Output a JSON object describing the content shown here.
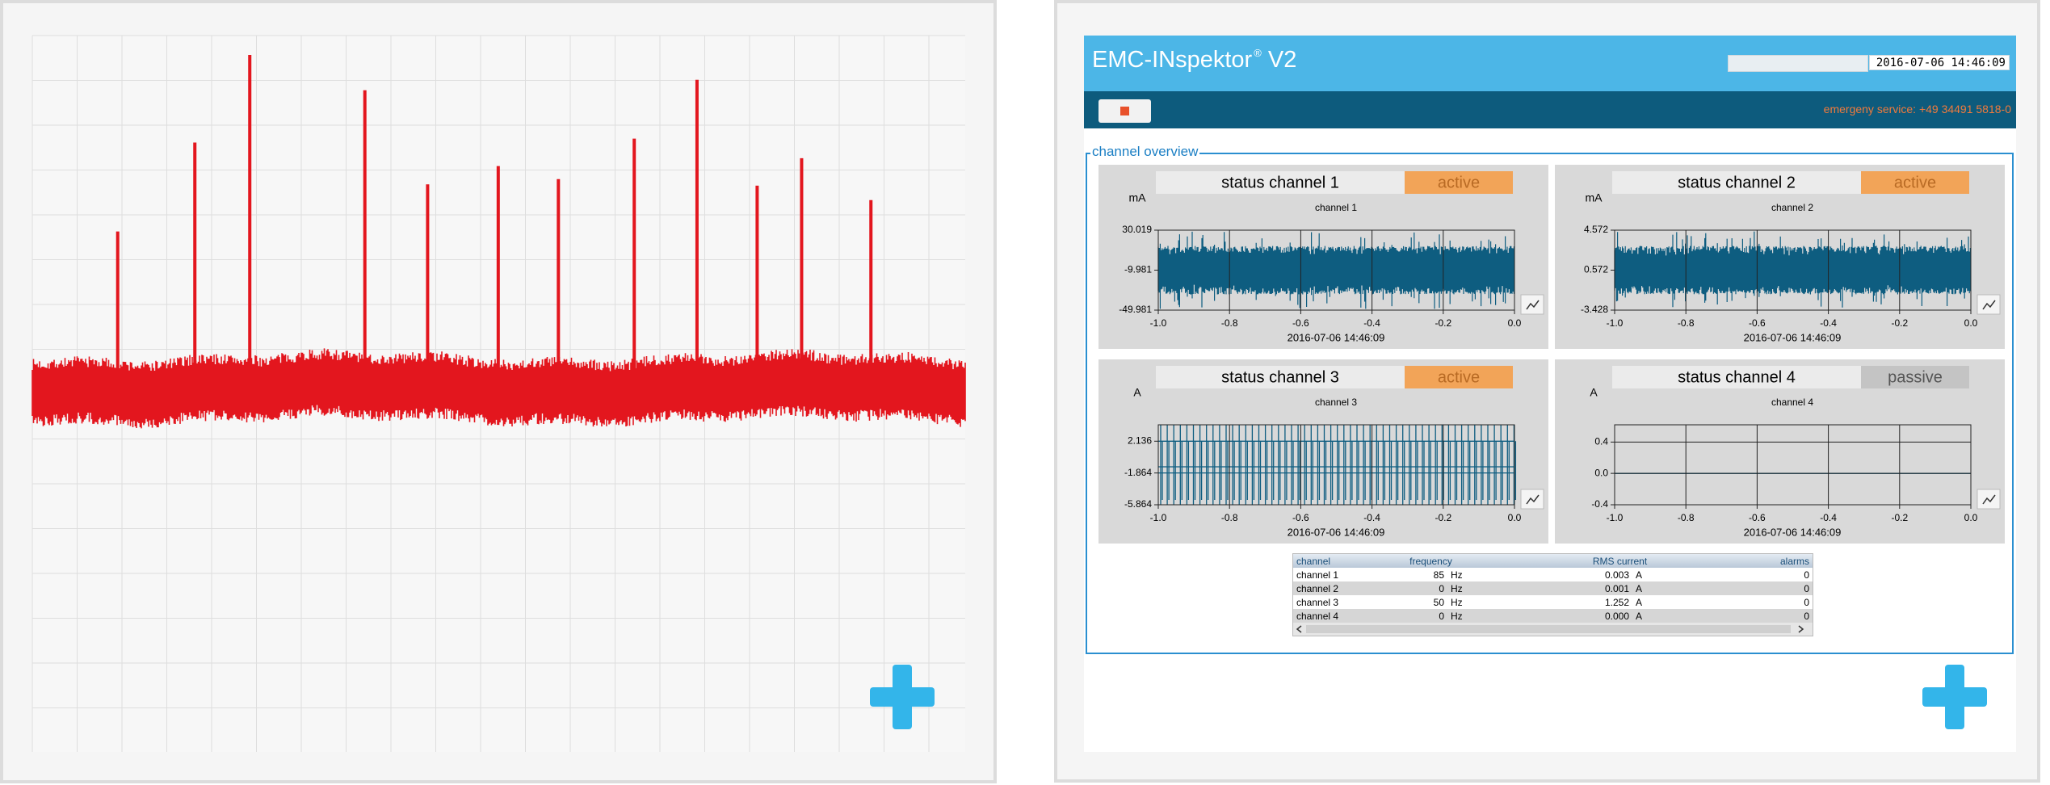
{
  "header": {
    "title": "EMC-INspektor",
    "trademark": "®",
    "version": "V2",
    "datetime": "2016-07-06 14:46:09",
    "emergency": "emergeny service: +49 34491 5818-0"
  },
  "overview": {
    "legend": "channel overview",
    "channels": [
      {
        "status": "status channel 1",
        "state": "active",
        "unit": "mA",
        "title": "channel 1",
        "ylim": [
          -49.981,
          30.019
        ],
        "yticks": [
          -49.981,
          -9.981,
          30.019
        ],
        "xlim": [
          -1,
          0
        ],
        "xticks": [
          {
            "value": -1,
            "label": "-1.0"
          },
          -0.8,
          -0.6,
          -0.4,
          -0.2,
          {
            "value": 0,
            "label": "0.0"
          }
        ],
        "timestamp": "2016-07-06 14:46:09"
      },
      {
        "status": "status channel 2",
        "state": "active",
        "unit": "mA",
        "title": "channel 2",
        "ylim": [
          -3.428,
          4.572
        ],
        "yticks": [
          -3.428,
          0.572,
          4.572
        ],
        "xlim": [
          -1,
          0
        ],
        "xticks": [
          {
            "value": -1,
            "label": "-1.0"
          },
          -0.8,
          -0.6,
          -0.4,
          -0.2,
          {
            "value": 0,
            "label": "0.0"
          }
        ],
        "timestamp": "2016-07-06 14:46:09"
      },
      {
        "status": "status channel 3",
        "state": "active",
        "unit": "A",
        "title": "channel 3",
        "ylim": [
          -5.864,
          4.2
        ],
        "yticks": [
          -5.864,
          -1.864,
          2.136
        ],
        "xlim": [
          -1,
          0
        ],
        "xticks": [
          {
            "value": -1,
            "label": "-1.0"
          },
          -0.8,
          -0.6,
          -0.4,
          -0.2,
          {
            "value": 0,
            "label": "0.0"
          }
        ],
        "timestamp": "2016-07-06 14:46:09"
      },
      {
        "status": "status channel 4",
        "state": "passive",
        "unit": "A",
        "title": "channel 4",
        "ylim": [
          -0.4,
          0.62
        ],
        "yticks": [
          -0.4,
          {
            "value": 0,
            "label": "0.0"
          },
          0.4
        ],
        "xlim": [
          -1,
          0
        ],
        "xticks": [
          {
            "value": -1,
            "label": "-1.0"
          },
          -0.8,
          -0.6,
          -0.4,
          -0.2,
          {
            "value": 0,
            "label": "0.0"
          }
        ],
        "timestamp": "2016-07-06 14:46:09"
      }
    ]
  },
  "table": {
    "columns": [
      "channel",
      "frequency",
      "RMS current",
      "alarms"
    ],
    "rows": [
      [
        "channel 1",
        "85",
        "Hz",
        "0.003",
        "A",
        "0"
      ],
      [
        "channel 2",
        "0",
        "Hz",
        "0.001",
        "A",
        "0"
      ],
      [
        "channel 3",
        "50",
        "Hz",
        "1.252",
        "A",
        "0"
      ],
      [
        "channel 4",
        "0",
        "Hz",
        "0.000",
        "A",
        "0"
      ]
    ]
  }
}
